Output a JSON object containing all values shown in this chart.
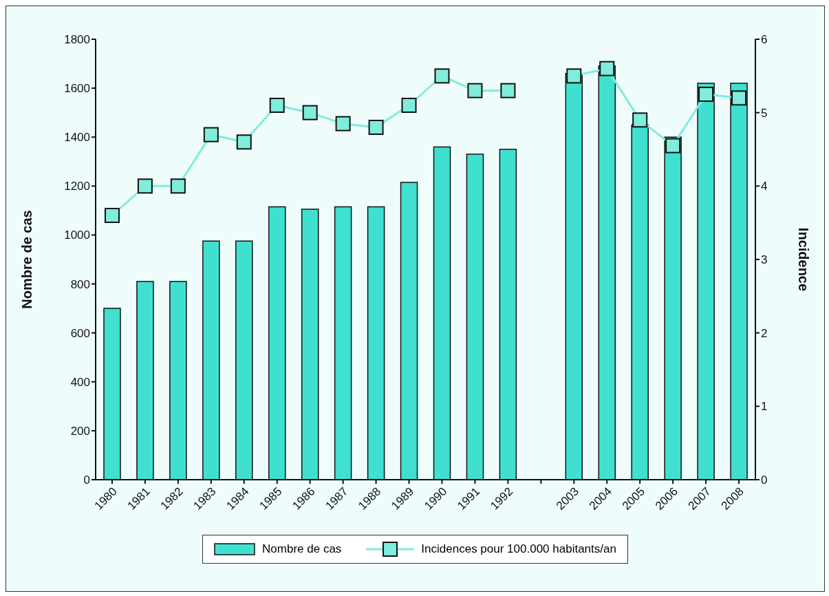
{
  "chart_data": {
    "type": "bar",
    "ylabel": "Nombre de cas",
    "y2label": "Incidence",
    "categories": [
      "1980",
      "1981",
      "1982",
      "1983",
      "1984",
      "1985",
      "1986",
      "1987",
      "1988",
      "1989",
      "1990",
      "1991",
      "1992",
      null,
      "2003",
      "2004",
      "2005",
      "2006",
      "2007",
      "2008"
    ],
    "series": [
      {
        "name": "Nombre de cas",
        "color": "#40e0d0",
        "values": [
          700,
          810,
          810,
          975,
          975,
          1115,
          1105,
          1115,
          1115,
          1215,
          1360,
          1330,
          1350,
          null,
          1660,
          1690,
          1450,
          1400,
          1620,
          1620
        ]
      },
      {
        "name": "Incidences pour 100.000 habitants/an",
        "type": "line",
        "axis": "y2",
        "color": "#80ecdc",
        "marker": "square",
        "values": [
          3.6,
          4.0,
          4.0,
          4.7,
          4.6,
          5.1,
          5.0,
          4.85,
          4.8,
          5.1,
          5.5,
          5.3,
          5.3,
          null,
          5.5,
          5.6,
          4.9,
          4.55,
          5.25,
          5.2
        ]
      }
    ],
    "ylim": [
      0,
      1800
    ],
    "yticks": [
      0,
      200,
      400,
      600,
      800,
      1000,
      1200,
      1400,
      1600,
      1800
    ],
    "y2lim": [
      0,
      6
    ],
    "y2ticks": [
      0,
      1,
      2,
      3,
      4,
      5,
      6
    ],
    "grid": false,
    "legend": "bottom"
  }
}
